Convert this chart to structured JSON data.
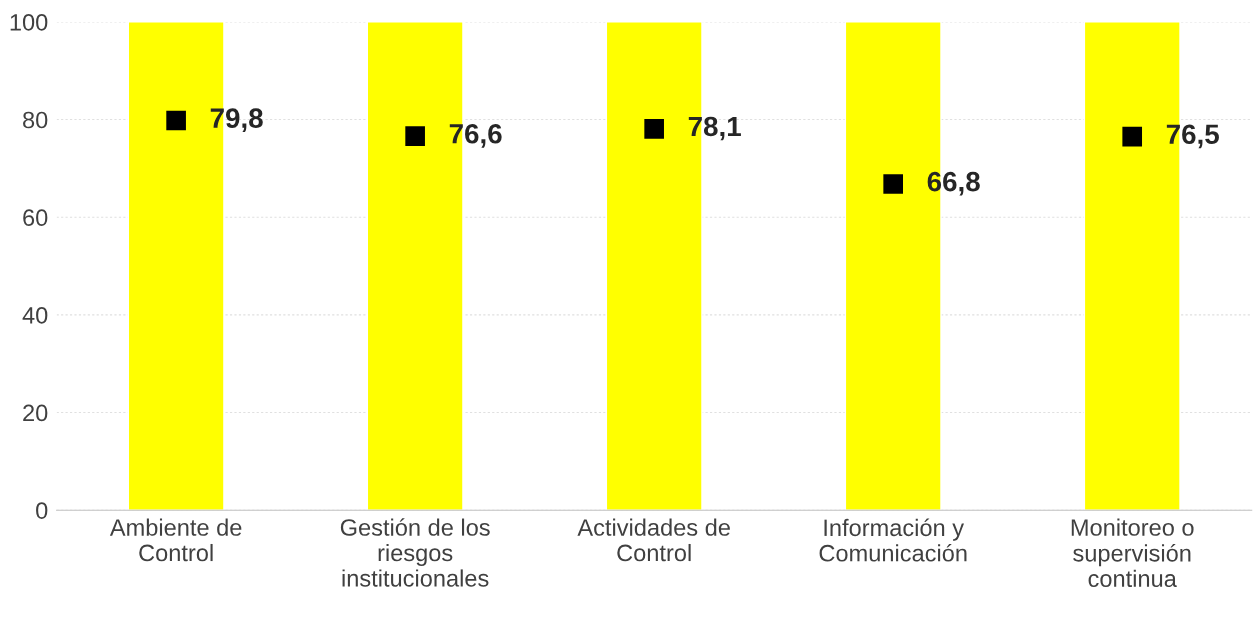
{
  "chart_data": {
    "type": "bar",
    "categories": [
      "Ambiente de\nControl",
      "Gestión de los\nriesgos\ninstitucionales",
      "Actividades de\nControl",
      "Información y\nComunicación",
      "Monitoreo o\nsupervisión\ncontinua"
    ],
    "series": [
      {
        "color": "#ffff00",
        "values": [
          100,
          100,
          100,
          100,
          100
        ]
      },
      {
        "type": "scatter",
        "marker": "square",
        "color": "#000000",
        "values": [
          79.8,
          76.6,
          78.1,
          66.8,
          76.5
        ],
        "value_labels": [
          "79,8",
          "76,6",
          "78,1",
          "66,8",
          "76,5"
        ]
      }
    ],
    "ylim": [
      0,
      100
    ],
    "yticks": [
      0,
      20,
      40,
      60,
      80,
      100
    ],
    "grid": "y"
  }
}
